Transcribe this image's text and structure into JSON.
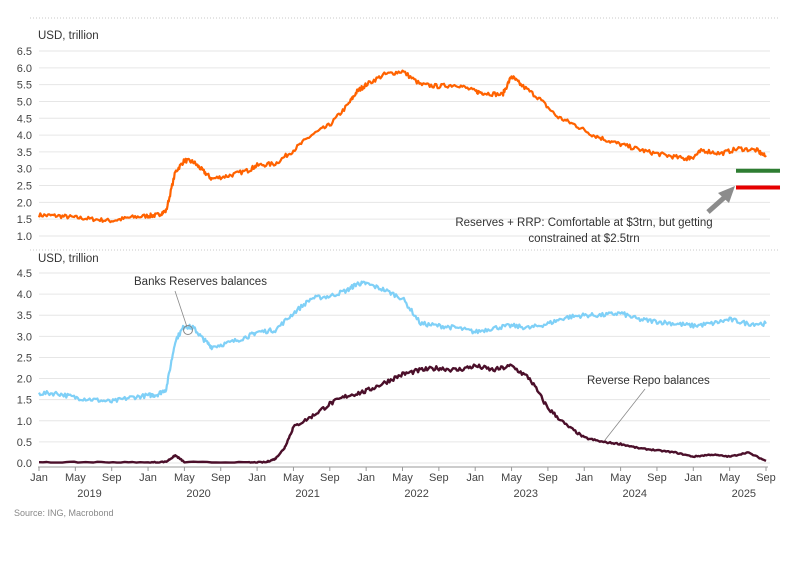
{
  "chart_data": [
    {
      "type": "line",
      "ylabel": "USD, trillion",
      "ylim": [
        1.0,
        6.5
      ],
      "yticks": [
        "1.0",
        "1.5",
        "2.0",
        "2.5",
        "3.0",
        "3.5",
        "4.0",
        "4.5",
        "5.0",
        "5.5",
        "6.0",
        "6.5"
      ],
      "xlim": [
        "2019-01-01",
        "2025-09-01"
      ],
      "grid": "horizontal",
      "series": [
        {
          "color": "#ff6200",
          "x": [
            "2019-01",
            "2019-03",
            "2019-05",
            "2019-07",
            "2019-09",
            "2019-11",
            "2020-01",
            "2020-02",
            "2020-03",
            "2020-04",
            "2020-05",
            "2020-06",
            "2020-07",
            "2020-08",
            "2020-10",
            "2020-12",
            "2021-01",
            "2021-03",
            "2021-05",
            "2021-07",
            "2021-09",
            "2021-11",
            "2021-12",
            "2022-01",
            "2022-03",
            "2022-05",
            "2022-07",
            "2022-09",
            "2022-11",
            "2023-01",
            "2023-02",
            "2023-04",
            "2023-05",
            "2023-06",
            "2023-08",
            "2023-10",
            "2023-12",
            "2024-02",
            "2024-04",
            "2024-06",
            "2024-08",
            "2024-10",
            "2024-12",
            "2025-01",
            "2025-02",
            "2025-04",
            "2025-06",
            "2025-08",
            "2025-09"
          ],
          "values": [
            1.62,
            1.6,
            1.55,
            1.5,
            1.45,
            1.55,
            1.6,
            1.62,
            1.75,
            2.9,
            3.25,
            3.2,
            2.95,
            2.7,
            2.8,
            2.95,
            3.1,
            3.15,
            3.55,
            4.0,
            4.3,
            4.9,
            5.3,
            5.5,
            5.8,
            5.9,
            5.5,
            5.45,
            5.5,
            5.3,
            5.25,
            5.2,
            5.75,
            5.5,
            5.1,
            4.55,
            4.3,
            4.0,
            3.8,
            3.65,
            3.5,
            3.4,
            3.3,
            3.35,
            3.55,
            3.45,
            3.6,
            3.55,
            3.35
          ]
        }
      ],
      "thresholds": [
        {
          "value": 3.0,
          "color": "#2e7d32"
        },
        {
          "value": 2.5,
          "color": "#e60000"
        }
      ],
      "annotations": [
        {
          "text": "Reserves + RRP: Comfortable at $3trn, but getting"
        },
        {
          "text": "constrained at $2.5trn"
        }
      ]
    },
    {
      "type": "line",
      "ylabel": "USD, trillion",
      "ylim": [
        0.0,
        4.5
      ],
      "yticks": [
        "0.0",
        "0.5",
        "1.0",
        "1.5",
        "2.0",
        "2.5",
        "3.0",
        "3.5",
        "4.0",
        "4.5"
      ],
      "xlim": [
        "2019-01-01",
        "2025-09-01"
      ],
      "grid": "horizontal",
      "xticks": [
        "Jan",
        "May",
        "Sep",
        "Jan",
        "May",
        "Sep",
        "Jan",
        "May",
        "Sep",
        "Jan",
        "May",
        "Sep",
        "Jan",
        "May",
        "Sep",
        "Jan",
        "May",
        "Sep",
        "Jan",
        "May",
        "Sep"
      ],
      "years": [
        "2019",
        "2020",
        "2021",
        "2022",
        "2023",
        "2024",
        "2025"
      ],
      "series": [
        {
          "name": "Banks Reserves balances",
          "color": "#7fd0f7",
          "x": [
            "2019-01",
            "2019-03",
            "2019-05",
            "2019-07",
            "2019-09",
            "2019-11",
            "2020-01",
            "2020-02",
            "2020-03",
            "2020-04",
            "2020-05",
            "2020-06",
            "2020-07",
            "2020-08",
            "2020-10",
            "2020-12",
            "2021-01",
            "2021-03",
            "2021-05",
            "2021-07",
            "2021-09",
            "2021-11",
            "2021-12",
            "2022-01",
            "2022-03",
            "2022-05",
            "2022-07",
            "2022-09",
            "2022-11",
            "2023-01",
            "2023-03",
            "2023-05",
            "2023-07",
            "2023-09",
            "2023-11",
            "2024-01",
            "2024-03",
            "2024-05",
            "2024-07",
            "2024-09",
            "2024-11",
            "2025-01",
            "2025-03",
            "2025-05",
            "2025-07",
            "2025-09"
          ],
          "values": [
            1.65,
            1.65,
            1.55,
            1.5,
            1.45,
            1.55,
            1.6,
            1.62,
            1.75,
            2.9,
            3.25,
            3.2,
            2.95,
            2.75,
            2.85,
            3.0,
            3.1,
            3.15,
            3.55,
            3.9,
            3.95,
            4.1,
            4.25,
            4.25,
            4.1,
            3.9,
            3.3,
            3.25,
            3.2,
            3.1,
            3.2,
            3.25,
            3.2,
            3.3,
            3.45,
            3.5,
            3.5,
            3.55,
            3.4,
            3.35,
            3.3,
            3.25,
            3.3,
            3.4,
            3.3,
            3.3
          ]
        },
        {
          "name": "Reverse Repo balances",
          "color": "#4b0f2a",
          "x": [
            "2019-01",
            "2019-07",
            "2020-01",
            "2020-03",
            "2020-04",
            "2020-05",
            "2020-12",
            "2021-02",
            "2021-03",
            "2021-04",
            "2021-05",
            "2021-07",
            "2021-09",
            "2021-11",
            "2022-01",
            "2022-03",
            "2022-05",
            "2022-07",
            "2022-09",
            "2022-11",
            "2023-01",
            "2023-03",
            "2023-05",
            "2023-07",
            "2023-09",
            "2023-11",
            "2024-01",
            "2024-03",
            "2024-05",
            "2024-07",
            "2024-09",
            "2024-11",
            "2025-01",
            "2025-03",
            "2025-05",
            "2025-07",
            "2025-09"
          ],
          "values": [
            0.01,
            0.02,
            0.01,
            0.03,
            0.18,
            0.02,
            0.01,
            0.02,
            0.1,
            0.35,
            0.85,
            1.1,
            1.4,
            1.6,
            1.7,
            1.9,
            2.1,
            2.2,
            2.25,
            2.2,
            2.3,
            2.2,
            2.3,
            2.0,
            1.3,
            0.9,
            0.6,
            0.5,
            0.45,
            0.35,
            0.3,
            0.25,
            0.15,
            0.2,
            0.15,
            0.25,
            0.05
          ]
        }
      ],
      "annotations": [
        {
          "text": "Banks Reserves balances"
        },
        {
          "text": "Reverse Repo balances"
        }
      ]
    }
  ],
  "source": "Source: ING, Macrobond"
}
